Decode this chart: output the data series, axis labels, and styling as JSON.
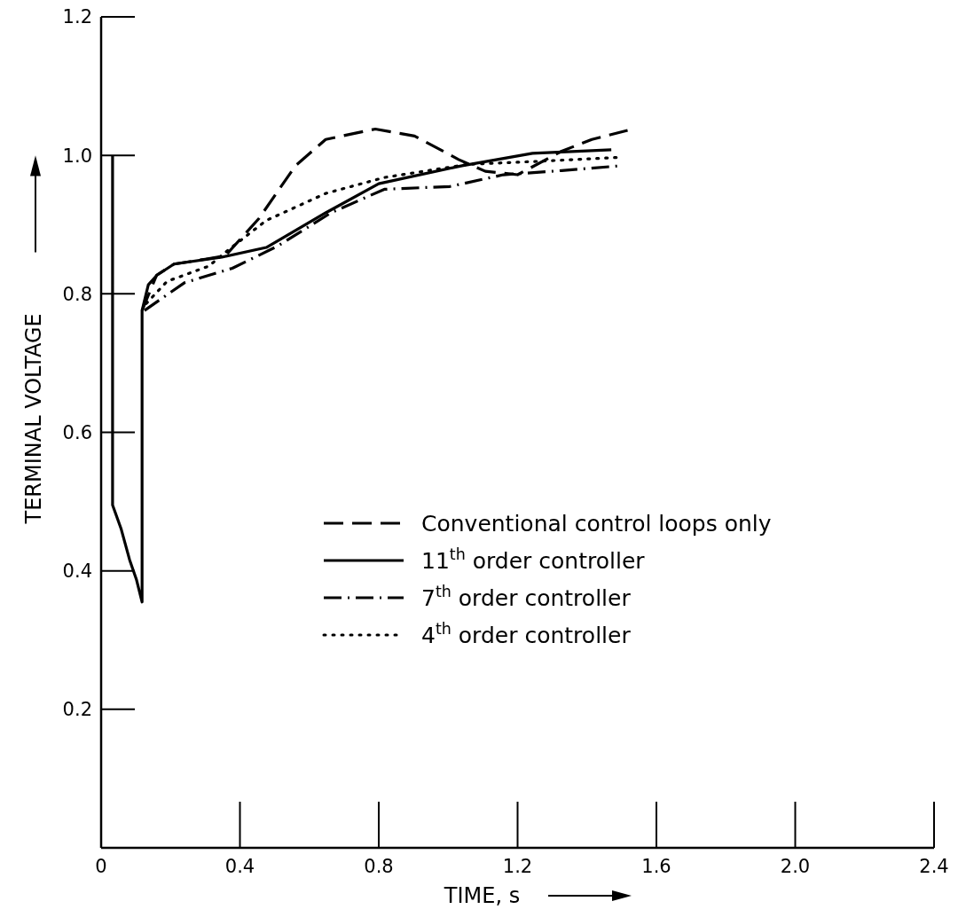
{
  "chart_data": {
    "type": "line",
    "xlabel": "TIME, s",
    "ylabel": "TERMINAL VOLTAGE",
    "xlim": [
      0,
      2.4
    ],
    "ylim": [
      0,
      1.2
    ],
    "xticks": [
      0,
      0.4,
      0.8,
      1.2,
      1.6,
      {
        "value": 2,
        "label": "2.0"
      },
      2.4
    ],
    "yticks": [
      0.2,
      0.4,
      0.6,
      0.8,
      {
        "value": 1,
        "label": "1.0"
      },
      1.2
    ],
    "grid": false,
    "legend": "right",
    "marker": "none",
    "series": [
      {
        "name": "Conventional control loops only",
        "color": "#000000",
        "line_style": "dashed",
        "x": [
          0.118,
          0.16,
          0.21,
          0.3,
          0.358,
          0.455,
          0.56,
          0.647,
          0.79,
          0.903,
          1.03,
          1.107,
          1.2,
          1.327,
          1.414,
          1.517
        ],
        "values": [
          0.776,
          0.827,
          0.843,
          0.85,
          0.855,
          0.909,
          0.985,
          1.023,
          1.038,
          1.028,
          0.994,
          0.977,
          0.972,
          1.006,
          1.023,
          1.036
        ]
      },
      {
        "name": "11$^{th}$ order controller",
        "color": "#000000",
        "line_style": "solid",
        "x": [
          0.033,
          0.033,
          0.058,
          0.082,
          0.102,
          0.118,
          0.118,
          0.136,
          0.161,
          0.21,
          0.348,
          0.476,
          0.647,
          0.8,
          1.04,
          1.243,
          1.47
        ],
        "values": [
          1.0,
          0.495,
          0.46,
          0.416,
          0.387,
          0.355,
          0.776,
          0.813,
          0.827,
          0.843,
          0.853,
          0.867,
          0.917,
          0.959,
          0.985,
          1.003,
          1.008
        ]
      },
      {
        "name": "7$^{th}$ order controller",
        "color": "#000000",
        "line_style": "dashdot",
        "x": [
          0.125,
          0.24,
          0.378,
          0.509,
          0.662,
          0.816,
          1.005,
          1.159,
          1.327,
          1.499
        ],
        "values": [
          0.776,
          0.816,
          0.837,
          0.869,
          0.917,
          0.951,
          0.955,
          0.972,
          0.978,
          0.985
        ]
      },
      {
        "name": "4$^{th}$ order controller",
        "color": "#000000",
        "line_style": "dotted",
        "x": [
          0.13,
          0.19,
          0.31,
          0.368,
          0.476,
          0.647,
          0.816,
          1.056,
          1.243,
          1.49
        ],
        "values": [
          0.786,
          0.818,
          0.84,
          0.864,
          0.906,
          0.945,
          0.968,
          0.987,
          0.991,
          0.997
        ]
      }
    ]
  }
}
